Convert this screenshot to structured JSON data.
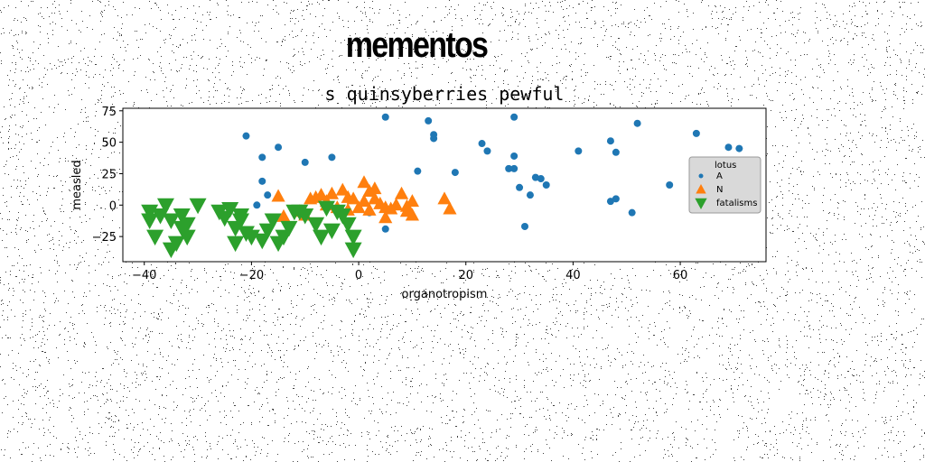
{
  "heading": "mementos",
  "chart_data": {
    "type": "scatter",
    "title": "s quinsyberries pewful",
    "xlabel": "organotropism",
    "ylabel": "measled",
    "xlim": [
      -44,
      76
    ],
    "ylim": [
      -45,
      77
    ],
    "xticks": [
      -40,
      -20,
      0,
      20,
      40,
      60
    ],
    "yticks": [
      -25,
      0,
      25,
      50,
      75
    ],
    "legend": {
      "title": "lotus",
      "position": "right"
    },
    "series": [
      {
        "name": "A",
        "marker": "circle",
        "color": "#1f77b4",
        "x": [
          5,
          13,
          29,
          -21,
          -18,
          -15,
          -10,
          -5,
          14,
          14,
          23,
          24,
          29,
          29,
          41,
          48,
          47,
          52,
          63,
          69,
          71,
          11,
          18,
          28,
          33,
          34,
          35,
          30,
          32,
          58,
          47,
          48,
          51,
          -18,
          -17,
          -19,
          2,
          5,
          31
        ],
        "y": [
          70,
          67,
          70,
          55,
          38,
          46,
          34,
          38,
          56,
          53,
          49,
          43,
          39,
          29,
          43,
          42,
          51,
          65,
          57,
          46,
          45,
          27,
          26,
          29,
          22,
          21,
          16,
          14,
          8,
          16,
          3,
          5,
          -6,
          19,
          8,
          0,
          -6,
          -19,
          -17
        ]
      },
      {
        "name": "N",
        "marker": "triangle-up",
        "color": "#ff7f0e",
        "x": [
          -15,
          -14,
          -11,
          -9,
          -8,
          -7,
          -6,
          -5,
          -4,
          -3,
          -2,
          -2,
          -1,
          0,
          1,
          1,
          2,
          2,
          3,
          3,
          4,
          5,
          5,
          6,
          7,
          8,
          9,
          9,
          10,
          10,
          16,
          17,
          -10,
          -6
        ],
        "y": [
          7,
          -9,
          -5,
          5,
          6,
          8,
          3,
          9,
          -2,
          12,
          6,
          -4,
          5,
          -2,
          18,
          3,
          11,
          -4,
          13,
          5,
          1,
          -2,
          -10,
          -3,
          0,
          9,
          -1,
          -5,
          3,
          -8,
          5,
          -3,
          -8,
          0
        ]
      },
      {
        "name": "fatalisms",
        "marker": "triangle-down",
        "color": "#2ca02c",
        "x": [
          -39,
          -38,
          -37,
          -36,
          -35,
          -34,
          -33,
          -32,
          -32,
          -30,
          -26,
          -25,
          -24,
          -23,
          -23,
          -22,
          -22,
          -20,
          -18,
          -17,
          -16,
          -15,
          -14,
          -13,
          -11,
          -10,
          -8,
          -7,
          -6,
          -5,
          -4,
          -3,
          -2,
          -1,
          -1,
          -39,
          -35,
          -33,
          -21,
          -12
        ],
        "y": [
          -5,
          -25,
          -8,
          0,
          -12,
          -30,
          -8,
          -15,
          -25,
          0,
          -5,
          -10,
          -3,
          -18,
          -30,
          -8,
          -12,
          -25,
          -28,
          -20,
          -12,
          -30,
          -25,
          -18,
          -5,
          -8,
          -15,
          -25,
          -2,
          -20,
          -5,
          -8,
          -15,
          -25,
          -35,
          -12,
          -35,
          -18,
          -22,
          -5
        ]
      }
    ]
  }
}
